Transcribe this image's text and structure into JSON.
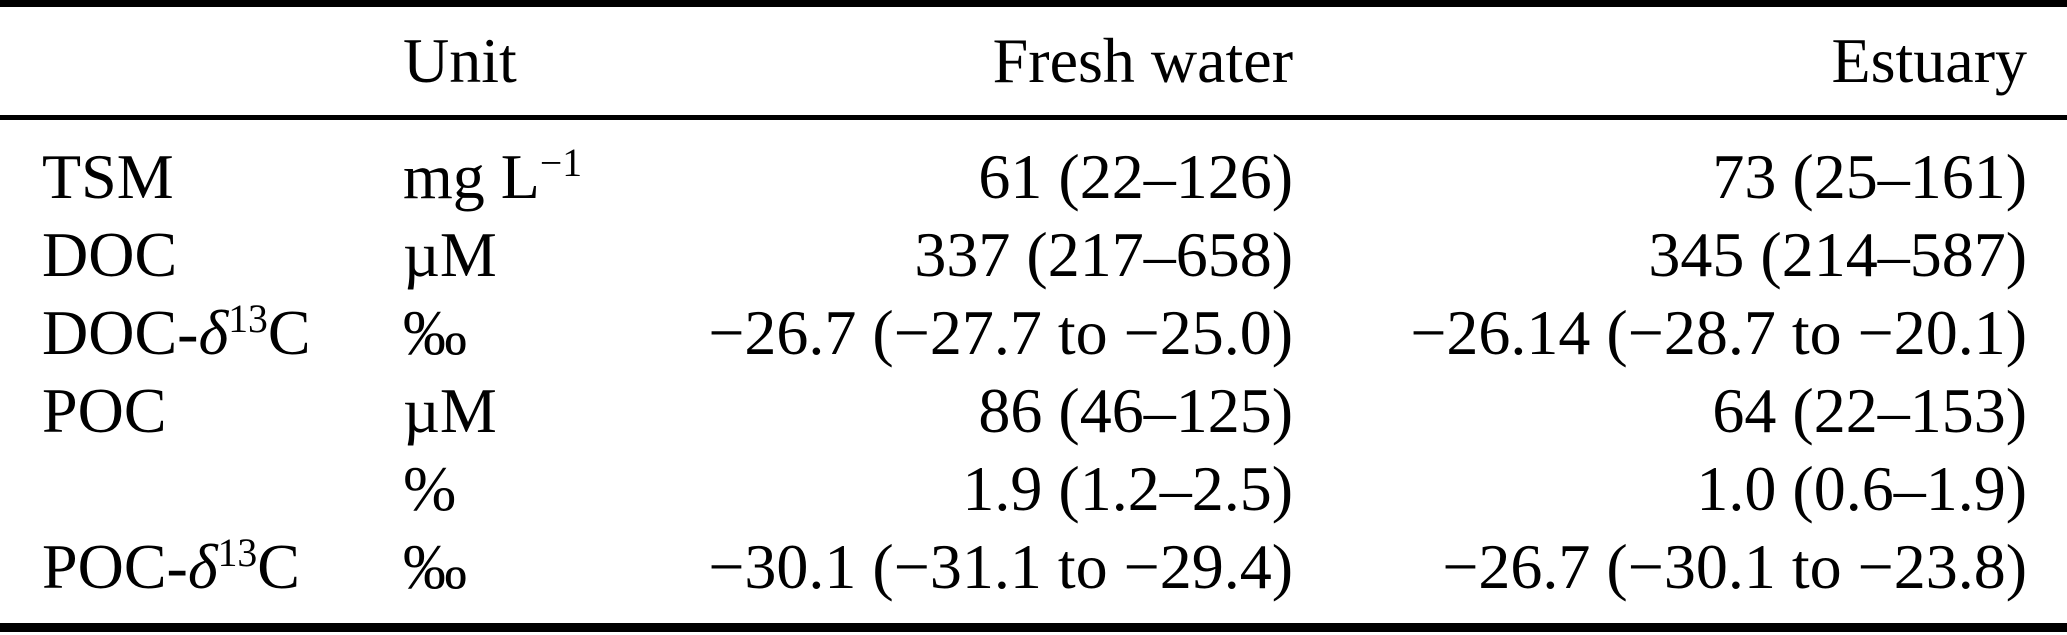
{
  "table": {
    "columns": [
      "",
      "Unit",
      "Fresh water",
      "Estuary"
    ],
    "rows": [
      {
        "label": "TSM",
        "unit": "mg L^{−1}",
        "fresh": "61 (22–126)",
        "estuary": "73 (25–161)"
      },
      {
        "label": "DOC",
        "unit": "µM",
        "fresh": "337 (217–658)",
        "estuary": "345 (214–587)"
      },
      {
        "label": "DOC-_δ_^{13}C",
        "unit": "‰",
        "fresh": "−26.7 (−27.7 to −25.0)",
        "estuary": "−26.14 (−28.7 to −20.1)"
      },
      {
        "label": "POC",
        "unit": "µM",
        "fresh": "86 (46–125)",
        "estuary": "64 (22–153)"
      },
      {
        "label": "",
        "unit": "%",
        "fresh": "1.9 (1.2–2.5)",
        "estuary": "1.0 (0.6–1.9)"
      },
      {
        "label": "POC-_δ_^{13}C",
        "unit": "‰",
        "fresh": "−30.1 (−31.1 to −29.4)",
        "estuary": "−26.7 (−30.1 to −23.8)"
      }
    ]
  },
  "colors": {
    "text": "#000000",
    "rule": "#000000",
    "background": "#ffffff"
  }
}
